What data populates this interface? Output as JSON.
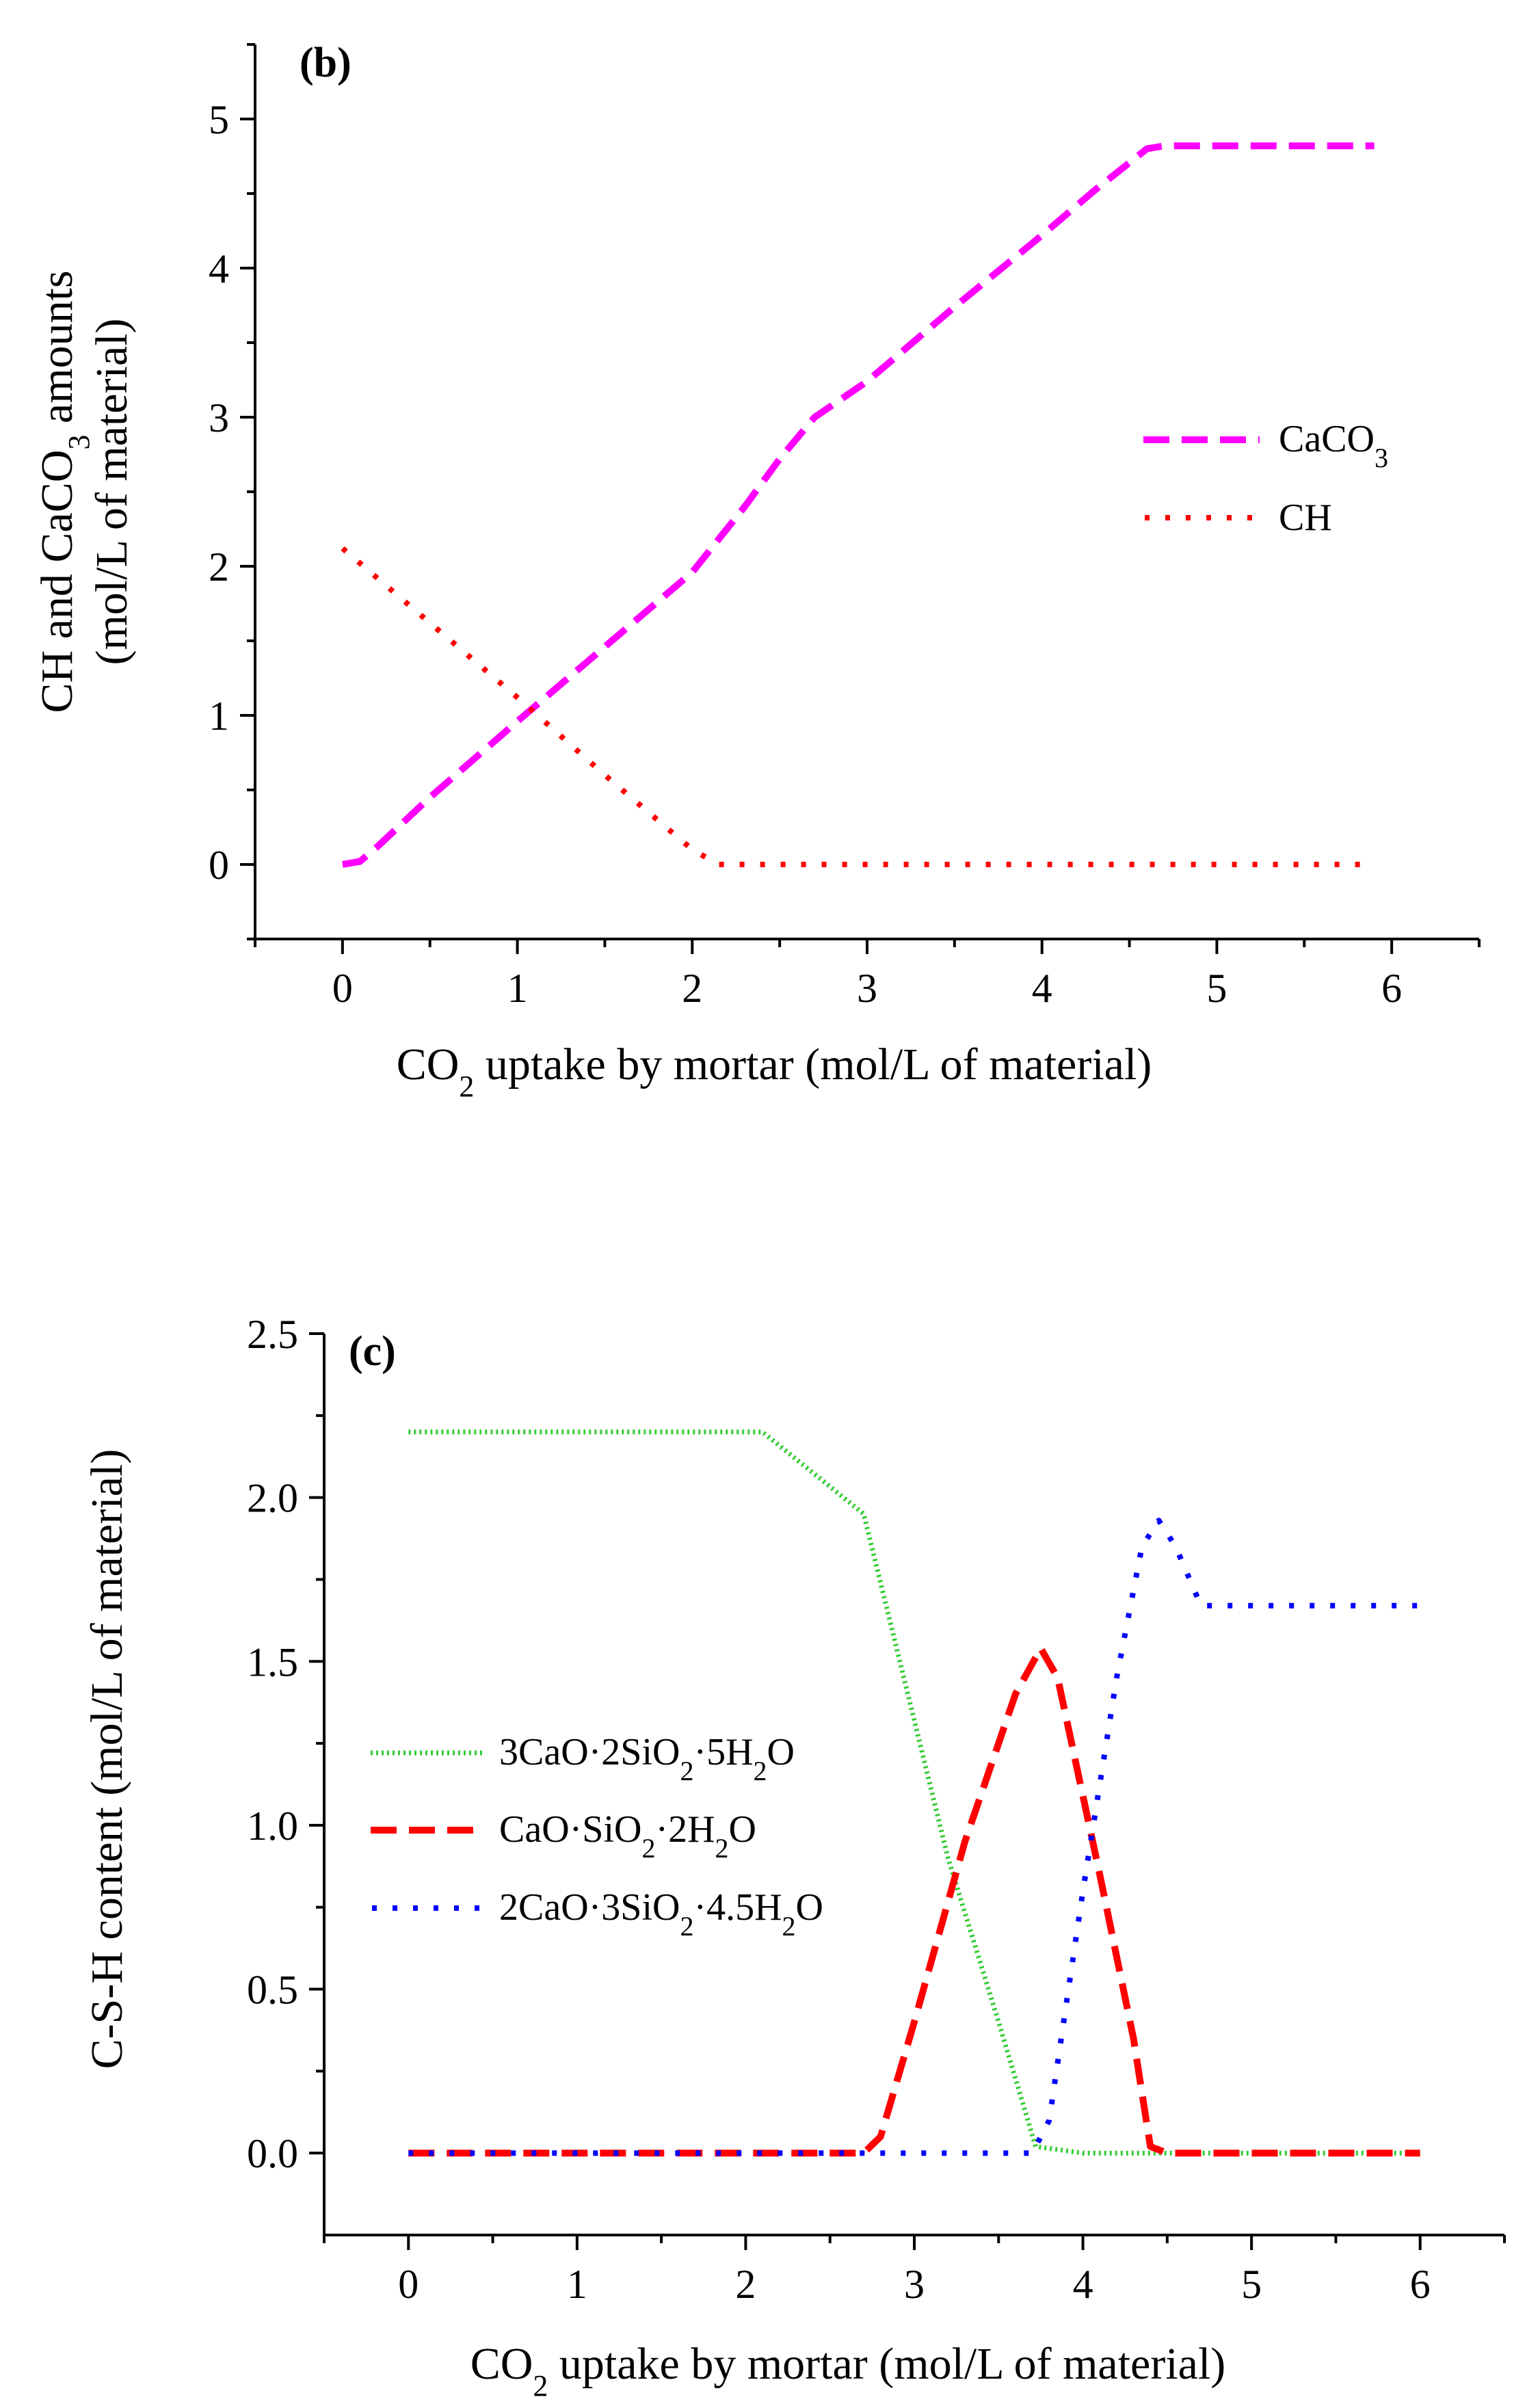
{
  "chart_data": [
    {
      "type": "line",
      "panel_label": "(b)",
      "xlabel": "CO2 uptake by mortar (mol/L of material)",
      "ylabel": "CH and CaCO3 amounts (mol/L of material)",
      "ylabel_line1": "CH and CaCO3 amounts",
      "ylabel_line2": "(mol/L of material)",
      "xlim": [
        -0.5,
        6.5
      ],
      "ylim": [
        -0.5,
        5.5
      ],
      "x_ticks": [
        0,
        1,
        2,
        3,
        4,
        5,
        6
      ],
      "x_minor_ticks": [
        -0.5,
        0.5,
        1.5,
        2.5,
        3.5,
        4.5,
        5.5,
        6.5
      ],
      "y_ticks": [
        0,
        1,
        2,
        3,
        4,
        5
      ],
      "y_minor_ticks": [
        -0.5,
        0.5,
        1.5,
        2.5,
        3.5,
        4.5,
        5.5
      ],
      "legend_position": "center-right",
      "series": [
        {
          "name": "CaCO3",
          "label_main": "CaCO",
          "label_sub": "3",
          "color": "#ff00ff",
          "style": "dashed",
          "x": [
            0.0,
            0.1,
            0.2,
            0.5,
            1.0,
            1.5,
            2.0,
            2.3,
            2.5,
            2.7,
            3.0,
            3.5,
            4.0,
            4.3,
            4.6,
            4.7,
            5.0,
            5.5,
            5.9
          ],
          "y": [
            0.0,
            0.02,
            0.12,
            0.45,
            0.96,
            1.46,
            1.96,
            2.4,
            2.72,
            3.0,
            3.24,
            3.74,
            4.22,
            4.52,
            4.8,
            4.82,
            4.82,
            4.82,
            4.82
          ]
        },
        {
          "name": "CH",
          "label_main": "CH",
          "label_sub": "",
          "color": "#ff0000",
          "style": "dotted",
          "x": [
            0.0,
            0.5,
            1.0,
            1.5,
            2.0,
            2.15,
            2.4,
            3.0,
            4.0,
            5.0,
            5.9
          ],
          "y": [
            2.12,
            1.62,
            1.12,
            0.6,
            0.1,
            0.0,
            0.0,
            0.0,
            0.0,
            0.0,
            0.0
          ]
        }
      ]
    },
    {
      "type": "line",
      "panel_label": "(c)",
      "xlabel": "CO2 uptake by mortar (mol/L of material)",
      "ylabel": "C-S-H content (mol/L of material)",
      "xlim": [
        -0.5,
        6.5
      ],
      "ylim": [
        -0.25,
        2.5
      ],
      "x_ticks": [
        0,
        1,
        2,
        3,
        4,
        5,
        6
      ],
      "x_minor_ticks": [
        -0.5,
        0.5,
        1.5,
        2.5,
        3.5,
        4.5,
        5.5,
        6.5
      ],
      "y_ticks": [
        0.0,
        0.5,
        1.0,
        1.5,
        2.0,
        2.5
      ],
      "y_tick_labels": [
        "0.0",
        "0.5",
        "1.0",
        "1.5",
        "2.0",
        "2.5"
      ],
      "y_minor_ticks": [
        0.25,
        0.75,
        1.25,
        1.75,
        2.25
      ],
      "legend_position": "center-left",
      "series": [
        {
          "name": "3CaO·2SiO2·5H2O",
          "color": "#33cc33",
          "style": "dotted-fine",
          "x": [
            0.0,
            1.0,
            2.0,
            2.1,
            2.7,
            3.2,
            3.5,
            3.72,
            4.0,
            5.0,
            6.0
          ],
          "y": [
            2.2,
            2.2,
            2.2,
            2.2,
            1.95,
            0.9,
            0.4,
            0.02,
            0.0,
            0.0,
            0.0
          ]
        },
        {
          "name": "CaO·SiO2·2H2O",
          "color": "#ff0000",
          "style": "dashed",
          "x": [
            0.0,
            1.0,
            2.0,
            2.7,
            2.8,
            3.0,
            3.3,
            3.6,
            3.75,
            3.85,
            4.1,
            4.3,
            4.4,
            4.5,
            5.0,
            6.0
          ],
          "y": [
            0.0,
            0.0,
            0.0,
            0.0,
            0.05,
            0.4,
            0.95,
            1.4,
            1.54,
            1.45,
            0.85,
            0.35,
            0.02,
            0.0,
            0.0,
            0.0
          ]
        },
        {
          "name": "2CaO·3SiO2·4.5H2O",
          "color": "#0000ff",
          "style": "dotted",
          "x": [
            0.0,
            1.0,
            2.0,
            3.0,
            3.7,
            3.8,
            4.0,
            4.2,
            4.35,
            4.45,
            4.55,
            4.7,
            5.0,
            5.5,
            6.0
          ],
          "y": [
            0.0,
            0.0,
            0.0,
            0.0,
            0.0,
            0.1,
            0.8,
            1.45,
            1.85,
            1.93,
            1.85,
            1.67,
            1.67,
            1.67,
            1.67
          ]
        }
      ]
    }
  ]
}
